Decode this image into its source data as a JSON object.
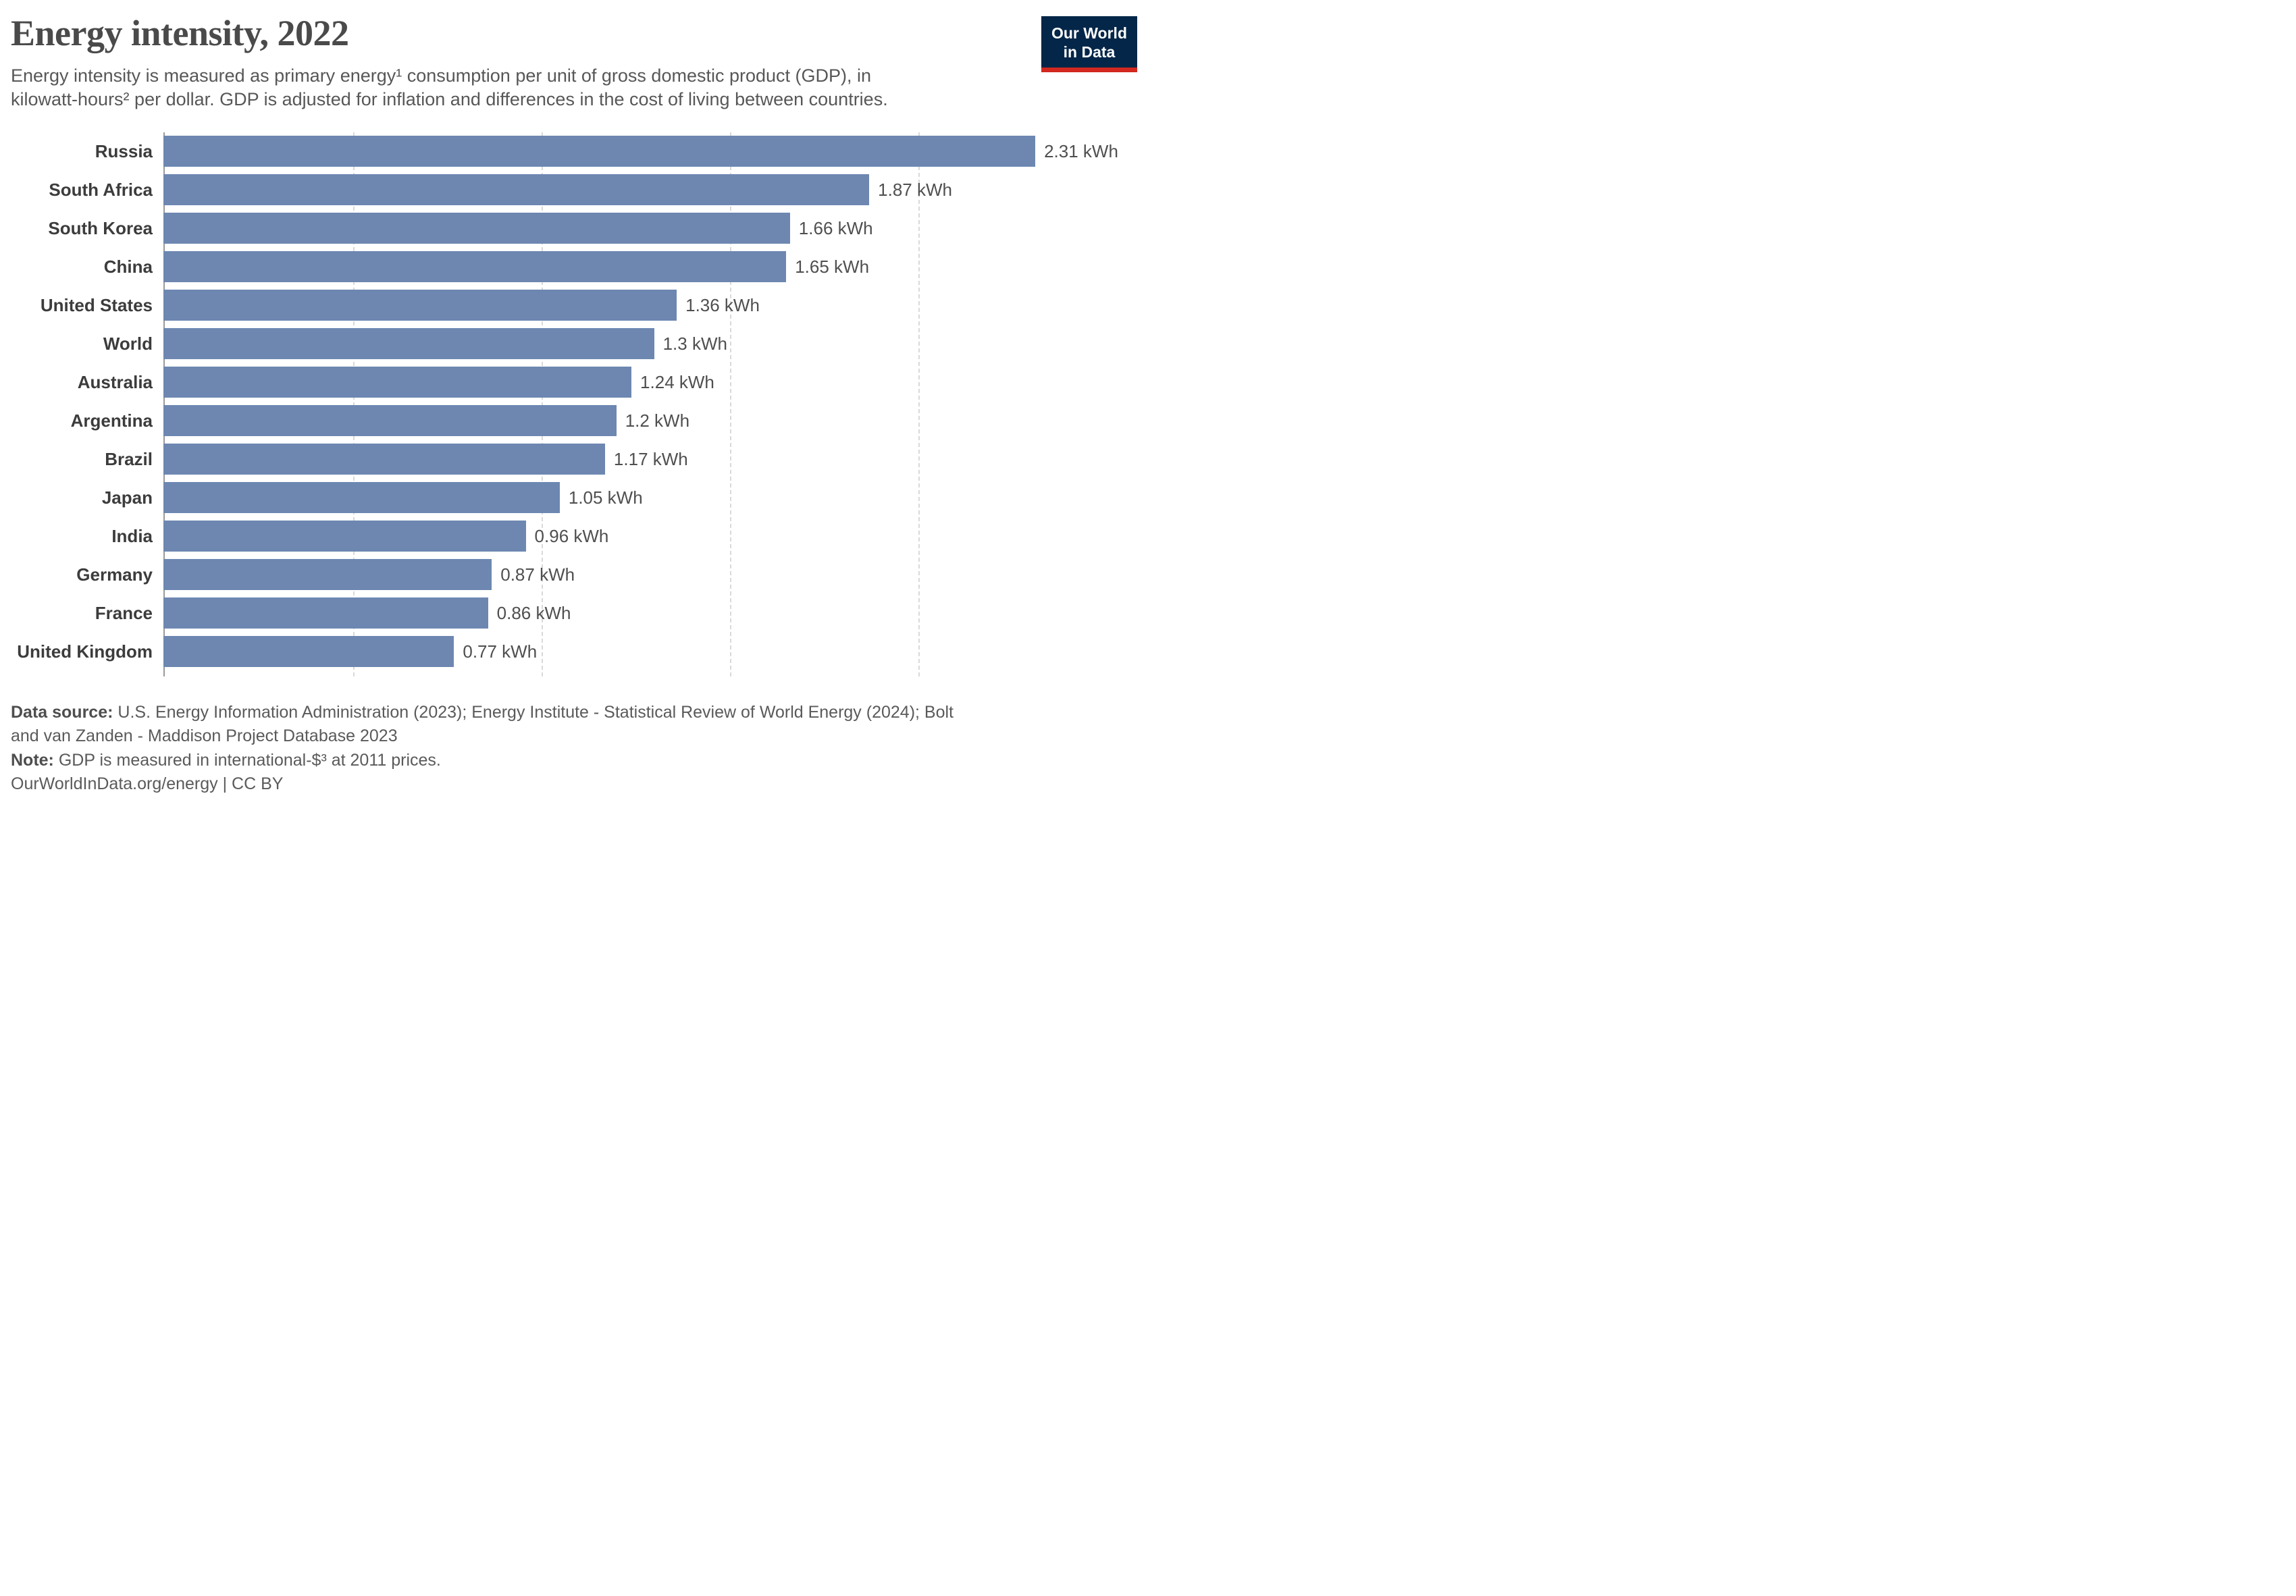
{
  "header": {
    "title": "Energy intensity, 2022",
    "subtitle": "Energy intensity is measured as primary energy¹ consumption per unit of gross domestic product (GDP), in kilowatt-hours² per dollar. GDP is adjusted for inflation and differences in the cost of living between countries.",
    "logo": {
      "line1": "Our World",
      "line2": "in Data"
    }
  },
  "chart_data": {
    "type": "bar",
    "orientation": "horizontal",
    "title": "Energy intensity, 2022",
    "unit": "kWh",
    "categories": [
      "Russia",
      "South Africa",
      "South Korea",
      "China",
      "United States",
      "World",
      "Australia",
      "Argentina",
      "Brazil",
      "Japan",
      "India",
      "Germany",
      "France",
      "United Kingdom"
    ],
    "values": [
      2.31,
      1.87,
      1.66,
      1.65,
      1.36,
      1.3,
      1.24,
      1.2,
      1.17,
      1.05,
      0.96,
      0.87,
      0.86,
      0.77
    ],
    "value_labels": [
      "2.31 kWh",
      "1.87 kWh",
      "1.66 kWh",
      "1.65 kWh",
      "1.36 kWh",
      "1.3 kWh",
      "1.24 kWh",
      "1.2 kWh",
      "1.17 kWh",
      "1.05 kWh",
      "0.96 kWh",
      "0.87 kWh",
      "0.86 kWh",
      "0.77 kWh"
    ],
    "xlim": [
      0,
      2.58
    ],
    "gridlines": [
      0.5,
      1.0,
      1.5,
      2.0
    ],
    "grid_style": "dashed-vertical",
    "legend": "none",
    "bar_color": "#6d87b1"
  },
  "footer": {
    "source_label": "Data source:",
    "source_text": " U.S. Energy Information Administration (2023); Energy Institute - Statistical Review of World Energy (2024); Bolt and van Zanden - Maddison Project Database 2023",
    "note_label": "Note:",
    "note_text": " GDP is measured in international-$³ at 2011 prices.",
    "license": "OurWorldInData.org/energy | CC BY"
  },
  "colors": {
    "bar": "#6d87b1",
    "logo_navy": "#042648",
    "logo_red": "#d2281f",
    "title_text": "#4a4a4a",
    "subtitle_text": "#575757",
    "grid": "#d9d9d9",
    "axis": "#9a9a9a"
  }
}
